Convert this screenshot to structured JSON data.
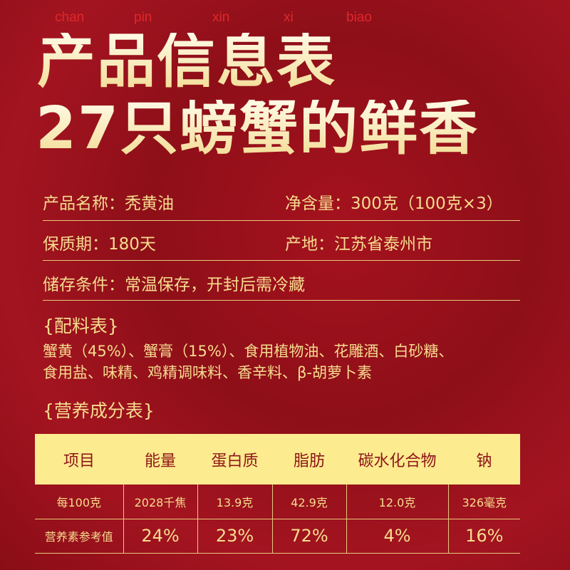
{
  "pinyin": [
    "chan",
    "pin",
    "xin",
    "xi",
    "biao"
  ],
  "title_line1": "产品信息表",
  "title_line2": "27只螃蟹的鲜香",
  "info": {
    "name": "产品名称：秃黄油",
    "net": "净含量：300克（100克×3）",
    "shelf": "保质期：180天",
    "origin": "产地：江苏省泰州市",
    "storage": "储存条件：常温保存，开封后需冷藏"
  },
  "ingredients_title": "{配料表}",
  "ingredients": [
    "蟹黄（45%）、蟹膏（15%）、食用植物油、花雕酒、白砂糖、",
    "食用盐、味精、鸡精调味料、香辛料、β-胡萝卜素"
  ],
  "nutrition_title": "{营养成分表}",
  "table": {
    "headers": [
      "项目",
      "能量",
      "蛋白质",
      "脂肪",
      "碳水化合物",
      "钠"
    ],
    "rows": [
      [
        "每100克",
        "2028千焦",
        "13.9克",
        "42.9克",
        "12.0克",
        "326毫克"
      ],
      [
        "营养素参考值",
        "24%",
        "23%",
        "72%",
        "4%",
        "16%"
      ]
    ]
  }
}
